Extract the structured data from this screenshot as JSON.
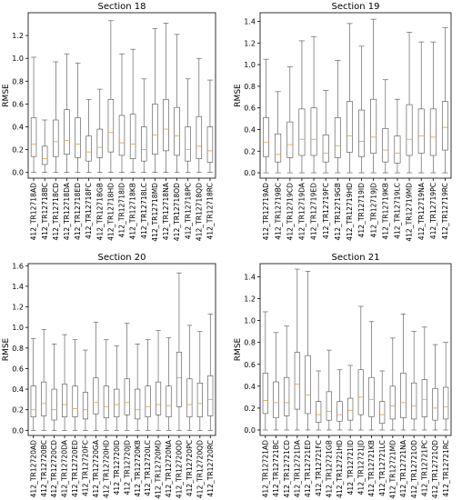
{
  "chart_data": [
    {
      "type": "boxplot",
      "title": "Section 18",
      "ylabel": "RMSE",
      "ylim": [
        -0.05,
        1.4
      ],
      "yticks": [
        0.0,
        0.2,
        0.4,
        0.6,
        0.8,
        1.0,
        1.2
      ],
      "ytick_labels": [
        "0.0",
        "0.2",
        "0.4",
        "0.6",
        "0.8",
        "1.0",
        "1.2"
      ],
      "categories": [
        "412_TR12718AD",
        "412_TR12718BC",
        "412_TR12718CD",
        "412_TR12718DA",
        "412_TR12718ED",
        "412_TR12718FC",
        "412_TR12718GB",
        "412_TR12718HD",
        "412_TR12718ID",
        "412_TR12718KB",
        "412_TR12718LC",
        "412_TR12718MD",
        "412_TR12718NA",
        "412_TR12718OD",
        "412_TR12718PC",
        "412_TR12718QD",
        "412_TR12718RC"
      ],
      "boxes": [
        {
          "min": 0.0,
          "q1": 0.14,
          "median": 0.25,
          "q3": 0.48,
          "max": 1.01
        },
        {
          "min": 0.0,
          "q1": 0.07,
          "median": 0.12,
          "q3": 0.23,
          "max": 0.46
        },
        {
          "min": 0.0,
          "q1": 0.14,
          "median": 0.27,
          "q3": 0.46,
          "max": 0.97
        },
        {
          "min": 0.0,
          "q1": 0.16,
          "median": 0.28,
          "q3": 0.55,
          "max": 1.04
        },
        {
          "min": 0.0,
          "q1": 0.13,
          "median": 0.25,
          "q3": 0.48,
          "max": 0.96
        },
        {
          "min": 0.0,
          "q1": 0.1,
          "median": 0.18,
          "q3": 0.32,
          "max": 0.64
        },
        {
          "min": 0.0,
          "q1": 0.13,
          "median": 0.22,
          "q3": 0.38,
          "max": 0.73
        },
        {
          "min": 0.0,
          "q1": 0.18,
          "median": 0.35,
          "q3": 0.64,
          "max": 1.33
        },
        {
          "min": 0.0,
          "q1": 0.15,
          "median": 0.26,
          "q3": 0.5,
          "max": 1.04
        },
        {
          "min": 0.0,
          "q1": 0.12,
          "median": 0.25,
          "q3": 0.51,
          "max": 1.08
        },
        {
          "min": 0.0,
          "q1": 0.1,
          "median": 0.2,
          "q3": 0.4,
          "max": 0.82
        },
        {
          "min": 0.0,
          "q1": 0.16,
          "median": 0.33,
          "q3": 0.6,
          "max": 1.26
        },
        {
          "min": 0.0,
          "q1": 0.19,
          "median": 0.38,
          "q3": 0.64,
          "max": 1.31
        },
        {
          "min": 0.0,
          "q1": 0.15,
          "median": 0.32,
          "q3": 0.57,
          "max": 1.21
        },
        {
          "min": 0.0,
          "q1": 0.1,
          "median": 0.2,
          "q3": 0.4,
          "max": 0.82
        },
        {
          "min": 0.0,
          "q1": 0.12,
          "median": 0.23,
          "q3": 0.49,
          "max": 1.0
        },
        {
          "min": 0.0,
          "q1": 0.09,
          "median": 0.19,
          "q3": 0.4,
          "max": 0.81
        }
      ]
    },
    {
      "type": "boxplot",
      "title": "Section 19",
      "ylabel": "RMSE",
      "ylim": [
        -0.05,
        1.48
      ],
      "yticks": [
        0.0,
        0.2,
        0.4,
        0.6,
        0.8,
        1.0,
        1.2,
        1.4
      ],
      "ytick_labels": [
        "0.0",
        "0.2",
        "0.4",
        "0.6",
        "0.8",
        "1.0",
        "1.2",
        "1.4"
      ],
      "categories": [
        "412_TR12719AD",
        "412_TR12719BC",
        "412_TR12719CD",
        "412_TR12719DA",
        "412_TR12719ED",
        "412_TR12719FC",
        "412_TR12719GB",
        "412_TR12719HD",
        "412_TR12719ID",
        "412_TR12719JD",
        "412_TR12719KB",
        "412_TR12719LC",
        "412_TR12719MD",
        "412_TR12719NA",
        "412_TR12719PC",
        "412_TR12719RC"
      ],
      "boxes": [
        {
          "min": 0.0,
          "q1": 0.15,
          "median": 0.28,
          "q3": 0.51,
          "max": 1.05
        },
        {
          "min": 0.0,
          "q1": 0.1,
          "median": 0.17,
          "q3": 0.36,
          "max": 0.75
        },
        {
          "min": 0.0,
          "q1": 0.14,
          "median": 0.26,
          "q3": 0.47,
          "max": 0.98
        },
        {
          "min": 0.0,
          "q1": 0.16,
          "median": 0.31,
          "q3": 0.59,
          "max": 1.22
        },
        {
          "min": 0.0,
          "q1": 0.16,
          "median": 0.31,
          "q3": 0.6,
          "max": 1.26
        },
        {
          "min": 0.0,
          "q1": 0.1,
          "median": 0.18,
          "q3": 0.35,
          "max": 0.76
        },
        {
          "min": 0.0,
          "q1": 0.14,
          "median": 0.25,
          "q3": 0.51,
          "max": 1.04
        },
        {
          "min": 0.0,
          "q1": 0.19,
          "median": 0.34,
          "q3": 0.66,
          "max": 1.38
        },
        {
          "min": 0.0,
          "q1": 0.15,
          "median": 0.29,
          "q3": 0.58,
          "max": 1.17
        },
        {
          "min": 0.0,
          "q1": 0.18,
          "median": 0.33,
          "q3": 0.68,
          "max": 1.42
        },
        {
          "min": 0.0,
          "q1": 0.1,
          "median": 0.21,
          "q3": 0.41,
          "max": 0.86
        },
        {
          "min": 0.0,
          "q1": 0.09,
          "median": 0.18,
          "q3": 0.34,
          "max": 0.68
        },
        {
          "min": 0.0,
          "q1": 0.16,
          "median": 0.31,
          "q3": 0.63,
          "max": 1.3
        },
        {
          "min": 0.0,
          "q1": 0.18,
          "median": 0.34,
          "q3": 0.59,
          "max": 1.21
        },
        {
          "min": 0.0,
          "q1": 0.16,
          "median": 0.33,
          "q3": 0.59,
          "max": 1.21
        },
        {
          "min": 0.0,
          "q1": 0.21,
          "median": 0.42,
          "q3": 0.66,
          "max": 1.34
        }
      ]
    },
    {
      "type": "boxplot",
      "title": "Section 20",
      "ylabel": "RMSE",
      "ylim": [
        -0.05,
        1.62
      ],
      "yticks": [
        0.0,
        0.2,
        0.4,
        0.6,
        0.8,
        1.0,
        1.2,
        1.4,
        1.6
      ],
      "ytick_labels": [
        "0.0",
        "0.2",
        "0.4",
        "0.6",
        "0.8",
        "1.0",
        "1.2",
        "1.4",
        "1.6"
      ],
      "categories": [
        "412_TR12720AD",
        "412_TR12720BC",
        "412_TR12720CD",
        "412_TR12720DA",
        "412_TR12720ED",
        "412_TR12720FC",
        "412_TR12720GA",
        "412_TR12720HD",
        "412_TR12720ID",
        "412_TR12720JD",
        "412_TR12720KB",
        "412_TR12720LC",
        "412_TR12720MD",
        "412_TR12720NA",
        "412_TR12720OD",
        "412_TR12720PC",
        "412_TR12720QD",
        "412_TR12720RC"
      ],
      "boxes": [
        {
          "min": 0.0,
          "q1": 0.13,
          "median": 0.2,
          "q3": 0.43,
          "max": 0.89
        },
        {
          "min": 0.0,
          "q1": 0.14,
          "median": 0.26,
          "q3": 0.47,
          "max": 0.98
        },
        {
          "min": 0.0,
          "q1": 0.1,
          "median": 0.2,
          "q3": 0.4,
          "max": 0.84
        },
        {
          "min": 0.0,
          "q1": 0.13,
          "median": 0.25,
          "q3": 0.45,
          "max": 0.93
        },
        {
          "min": 0.0,
          "q1": 0.13,
          "median": 0.21,
          "q3": 0.43,
          "max": 0.88
        },
        {
          "min": 0.0,
          "q1": 0.11,
          "median": 0.2,
          "q3": 0.37,
          "max": 0.78
        },
        {
          "min": 0.0,
          "q1": 0.16,
          "median": 0.27,
          "q3": 0.51,
          "max": 1.05
        },
        {
          "min": 0.0,
          "q1": 0.12,
          "median": 0.23,
          "q3": 0.43,
          "max": 0.88
        },
        {
          "min": 0.0,
          "q1": 0.13,
          "median": 0.25,
          "q3": 0.4,
          "max": 0.82
        },
        {
          "min": 0.0,
          "q1": 0.15,
          "median": 0.27,
          "q3": 0.5,
          "max": 1.04
        },
        {
          "min": 0.0,
          "q1": 0.11,
          "median": 0.2,
          "q3": 0.4,
          "max": 0.84
        },
        {
          "min": 0.0,
          "q1": 0.13,
          "median": 0.23,
          "q3": 0.43,
          "max": 0.88
        },
        {
          "min": 0.0,
          "q1": 0.15,
          "median": 0.25,
          "q3": 0.47,
          "max": 0.97
        },
        {
          "min": 0.0,
          "q1": 0.13,
          "median": 0.24,
          "q3": 0.43,
          "max": 0.9
        },
        {
          "min": 0.0,
          "q1": 0.23,
          "median": 0.51,
          "q3": 0.76,
          "max": 1.53
        },
        {
          "min": 0.0,
          "q1": 0.13,
          "median": 0.25,
          "q3": 0.5,
          "max": 1.02
        },
        {
          "min": 0.0,
          "q1": 0.13,
          "median": 0.26,
          "q3": 0.46,
          "max": 0.96
        },
        {
          "min": 0.0,
          "q1": 0.14,
          "median": 0.3,
          "q3": 0.53,
          "max": 1.13
        }
      ]
    },
    {
      "type": "boxplot",
      "title": "Section 21",
      "ylabel": "RMSE",
      "ylim": [
        -0.05,
        1.52
      ],
      "yticks": [
        0.0,
        0.2,
        0.4,
        0.6,
        0.8,
        1.0,
        1.2,
        1.4
      ],
      "ytick_labels": [
        "0.0",
        "0.2",
        "0.4",
        "0.6",
        "0.8",
        "1.0",
        "1.2",
        "1.4"
      ],
      "categories": [
        "412_TR12721AD",
        "412_TR12721BC",
        "412_TR12721CD",
        "412_TR12721DA",
        "412_TR12721ED",
        "412_TR12721FC",
        "412_TR12721GB",
        "412_TR12721HD",
        "412_TR12721ID",
        "412_TR12721JD",
        "412_TR12721KB",
        "412_TR12721LC",
        "412_TR12721MD",
        "412_TR12721NA",
        "412_TR12721OD",
        "412_TR12721PC",
        "412_TR12721QD",
        "412_TR12721RC"
      ],
      "boxes": [
        {
          "min": 0.0,
          "q1": 0.15,
          "median": 0.27,
          "q3": 0.52,
          "max": 1.08
        },
        {
          "min": 0.0,
          "q1": 0.11,
          "median": 0.25,
          "q3": 0.44,
          "max": 0.89
        },
        {
          "min": 0.0,
          "q1": 0.13,
          "median": 0.25,
          "q3": 0.48,
          "max": 0.95
        },
        {
          "min": 0.0,
          "q1": 0.19,
          "median": 0.42,
          "q3": 0.71,
          "max": 1.47
        },
        {
          "min": 0.0,
          "q1": 0.15,
          "median": 0.32,
          "q3": 0.68,
          "max": 1.45
        },
        {
          "min": 0.0,
          "q1": 0.07,
          "median": 0.14,
          "q3": 0.26,
          "max": 0.54
        },
        {
          "min": 0.0,
          "q1": 0.09,
          "median": 0.17,
          "q3": 0.35,
          "max": 0.73
        },
        {
          "min": 0.0,
          "q1": 0.08,
          "median": 0.14,
          "q3": 0.26,
          "max": 0.55
        },
        {
          "min": 0.0,
          "q1": 0.09,
          "median": 0.18,
          "q3": 0.29,
          "max": 0.59
        },
        {
          "min": 0.0,
          "q1": 0.14,
          "median": 0.3,
          "q3": 0.55,
          "max": 1.13
        },
        {
          "min": 0.0,
          "q1": 0.12,
          "median": 0.28,
          "q3": 0.48,
          "max": 0.99
        },
        {
          "min": 0.0,
          "q1": 0.06,
          "median": 0.14,
          "q3": 0.26,
          "max": 0.54
        },
        {
          "min": 0.0,
          "q1": 0.1,
          "median": 0.22,
          "q3": 0.4,
          "max": 0.84
        },
        {
          "min": 0.0,
          "q1": 0.11,
          "median": 0.25,
          "q3": 0.52,
          "max": 1.06
        },
        {
          "min": 0.0,
          "q1": 0.1,
          "median": 0.22,
          "q3": 0.43,
          "max": 0.9
        },
        {
          "min": 0.0,
          "q1": 0.12,
          "median": 0.28,
          "q3": 0.46,
          "max": 0.94
        },
        {
          "min": 0.0,
          "q1": 0.09,
          "median": 0.2,
          "q3": 0.38,
          "max": 0.78
        },
        {
          "min": 0.0,
          "q1": 0.1,
          "median": 0.21,
          "q3": 0.39,
          "max": 0.8
        }
      ]
    }
  ],
  "colors": {
    "box": "#4d4d4d",
    "median": "#d9a24a",
    "axis": "#000000"
  }
}
